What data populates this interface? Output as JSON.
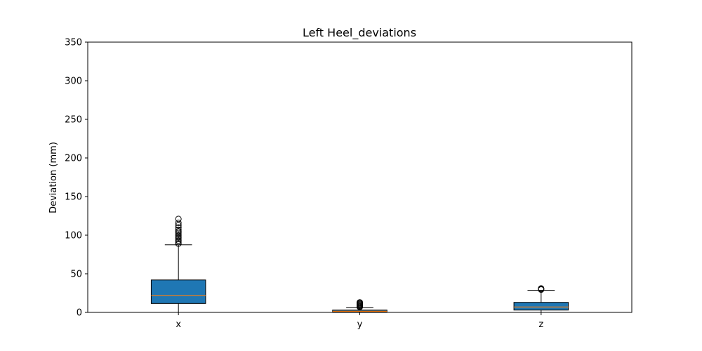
{
  "chart_data": {
    "type": "box",
    "title": "Left Heel_deviations",
    "xlabel": "",
    "ylabel": "Deviation (mm)",
    "ylim": [
      0,
      350
    ],
    "yticks": [
      0,
      50,
      100,
      150,
      200,
      250,
      300,
      350
    ],
    "grid": false,
    "categories": [
      "x",
      "y",
      "z"
    ],
    "boxes": [
      {
        "label": "x",
        "whisker_low": 0,
        "q1": 11.5,
        "median": 22,
        "q3": 42,
        "whisker_high": 87.5,
        "outliers": [
          89,
          91,
          93,
          95,
          97,
          99,
          101,
          103,
          105,
          107,
          110,
          113,
          116,
          121
        ]
      },
      {
        "label": "y",
        "whisker_low": 0,
        "q1": 0.5,
        "median": 1.5,
        "q3": 3,
        "whisker_high": 6,
        "outliers": [
          7,
          8,
          9,
          10,
          11,
          12,
          13
        ]
      },
      {
        "label": "z",
        "whisker_low": 0,
        "q1": 3,
        "median": 7,
        "q3": 13,
        "whisker_high": 28.5,
        "outliers": [
          29.5,
          30.5,
          31
        ]
      }
    ],
    "colors": {
      "box_fill": "#1f77b4",
      "median_line": "#ff7f0e",
      "edge": "#000000"
    }
  }
}
